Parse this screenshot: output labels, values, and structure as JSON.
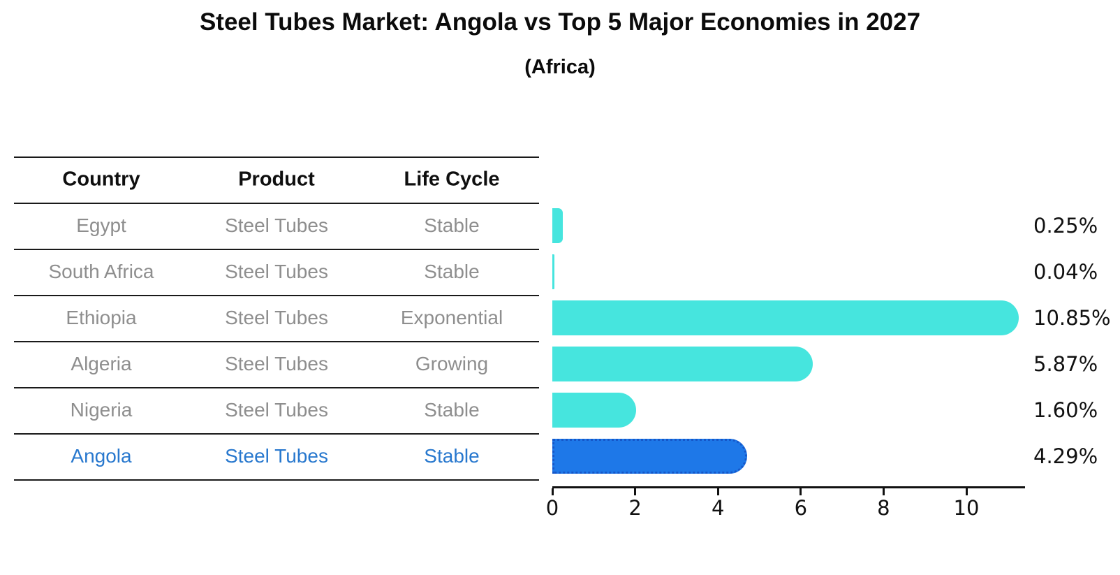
{
  "page": {
    "title": "Steel Tubes Market: Angola vs Top 5 Major Economies in 2027",
    "subtitle": "(Africa)"
  },
  "table": {
    "columns": [
      "Country",
      "Product",
      "Life Cycle"
    ],
    "rows": [
      {
        "country": "Egypt",
        "product": "Steel Tubes",
        "life_cycle": "Stable",
        "highlight": false
      },
      {
        "country": "South Africa",
        "product": "Steel Tubes",
        "life_cycle": "Stable",
        "highlight": false
      },
      {
        "country": "Ethiopia",
        "product": "Steel Tubes",
        "life_cycle": "Exponential",
        "highlight": false
      },
      {
        "country": "Algeria",
        "product": "Steel Tubes",
        "life_cycle": "Growing",
        "highlight": false
      },
      {
        "country": "Nigeria",
        "product": "Steel Tubes",
        "life_cycle": "Stable",
        "highlight": false
      },
      {
        "country": "Angola",
        "product": "Steel Tubes",
        "life_cycle": "Stable",
        "highlight": true
      }
    ]
  },
  "chart_data": {
    "type": "bar",
    "orientation": "horizontal",
    "title": "Steel Tubes Market: Angola vs Top 5 Major Economies in 2027",
    "subtitle": "(Africa)",
    "categories": [
      "Egypt",
      "South Africa",
      "Ethiopia",
      "Algeria",
      "Nigeria",
      "Angola"
    ],
    "values": [
      0.25,
      0.04,
      10.85,
      5.87,
      1.6,
      4.29
    ],
    "value_labels": [
      "0.25%",
      "0.04%",
      "10.85%",
      "5.87%",
      "1.60%",
      "4.29%"
    ],
    "x_ticks": [
      0,
      2,
      4,
      6,
      8,
      10
    ],
    "xlim": [
      0,
      11.42
    ],
    "grid": false,
    "legend": false,
    "highlight_index": 5,
    "bar_color": "#46E5DE",
    "highlight_color": "#1E78E8",
    "highlight_border_color": "#1557C9",
    "highlight_text_color": "#2878CE"
  }
}
